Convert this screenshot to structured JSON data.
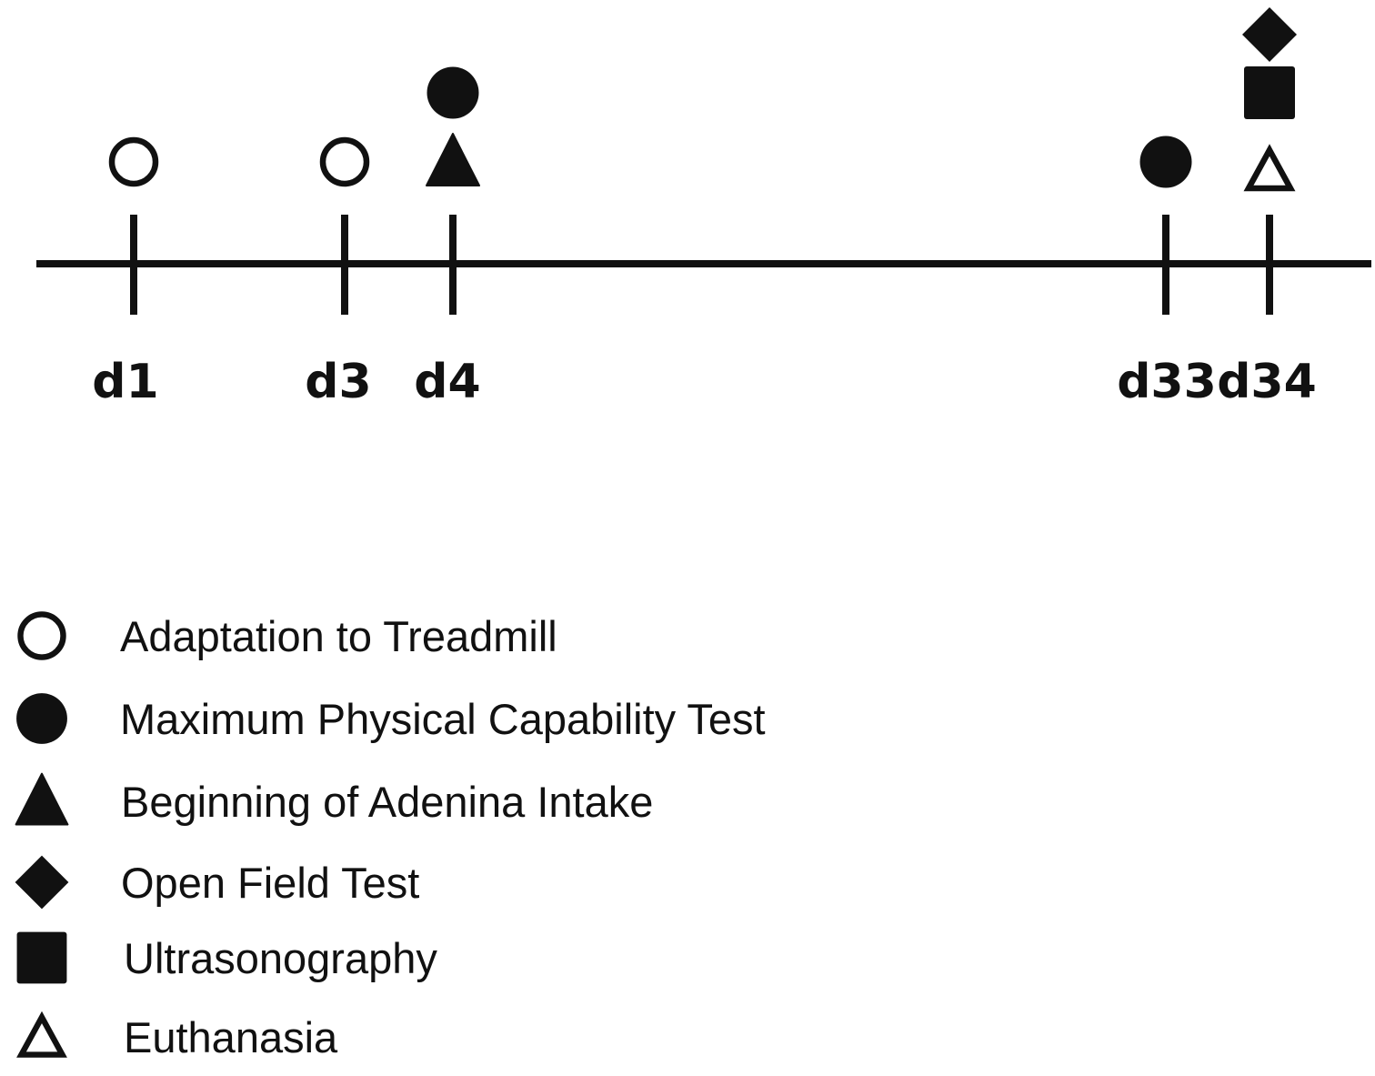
{
  "timeline": {
    "days": [
      {
        "label": "d1",
        "day": 1,
        "events": [
          "adaptation"
        ]
      },
      {
        "label": "d3",
        "day": 3,
        "events": [
          "adaptation"
        ]
      },
      {
        "label": "d4",
        "day": 4,
        "events": [
          "adenina",
          "max_test"
        ]
      },
      {
        "label": "d33",
        "day": 33,
        "events": [
          "max_test"
        ]
      },
      {
        "label": "d34",
        "day": 34,
        "events": [
          "euthanasia",
          "ultrasonography",
          "open_field"
        ]
      }
    ]
  },
  "legend": [
    {
      "key": "adaptation",
      "icon": "open-circle-icon",
      "label": "Adaptation to Treadmill"
    },
    {
      "key": "max_test",
      "icon": "filled-circle-icon",
      "label": "Maximum  Physical Capability Test"
    },
    {
      "key": "adenina",
      "icon": "filled-triangle-icon",
      "label": "Beginning of Adenina Intake"
    },
    {
      "key": "open_field",
      "icon": "filled-diamond-icon",
      "label": "Open Field Test"
    },
    {
      "key": "ultrasonography",
      "icon": "filled-square-icon",
      "label": "Ultrasonography"
    },
    {
      "key": "euthanasia",
      "icon": "open-triangle-icon",
      "label": "Euthanasia"
    }
  ],
  "colors": {
    "ink": "#111111",
    "background": "#ffffff"
  }
}
